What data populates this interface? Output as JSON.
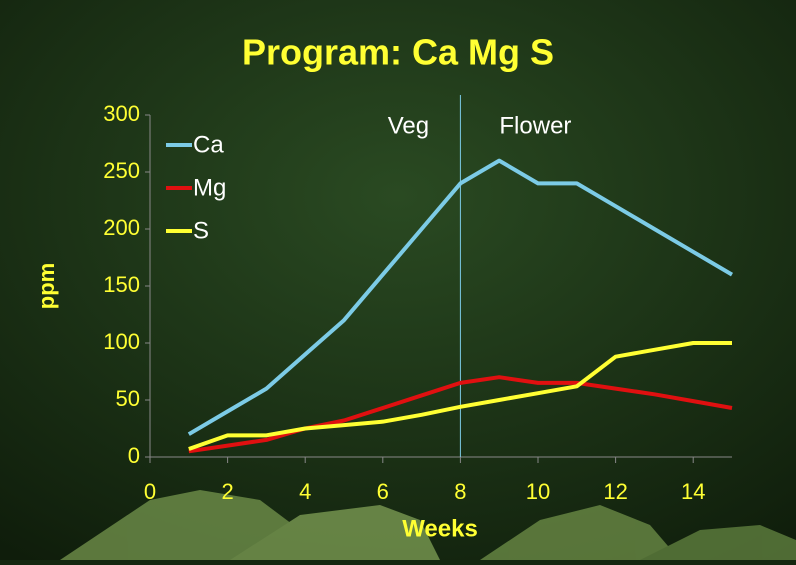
{
  "chart_data": {
    "type": "line",
    "title": "Program: Ca Mg S",
    "x_label": "Weeks",
    "y_label": "ppm",
    "x": [
      1,
      2,
      3,
      4,
      5,
      6,
      7,
      8,
      9,
      10,
      11,
      12,
      13,
      14,
      15
    ],
    "series": [
      {
        "name": "Ca",
        "color": "#7ccbe6",
        "values": [
          20,
          40,
          60,
          90,
          120,
          160,
          200,
          240,
          260,
          240,
          240,
          220,
          200,
          180,
          160
        ]
      },
      {
        "name": "Mg",
        "color": "#e01010",
        "values": [
          5,
          10,
          15,
          25,
          32,
          43,
          54,
          65,
          70,
          65,
          65,
          60,
          55,
          49,
          43
        ]
      },
      {
        "name": "S",
        "color": "#ffff33",
        "values": [
          7,
          19,
          19,
          25,
          28,
          31,
          37,
          44,
          50,
          56,
          62,
          88,
          94,
          100,
          100
        ]
      }
    ],
    "xlim": [
      0,
      15
    ],
    "xticks": [
      0,
      2,
      4,
      6,
      8,
      10,
      12,
      14
    ],
    "ylim": [
      0,
      300
    ],
    "yticks": [
      0,
      50,
      100,
      150,
      200,
      250,
      300
    ],
    "vline": 8,
    "annotations": [
      "Veg",
      "Flower"
    ],
    "legend": "upper-left"
  }
}
